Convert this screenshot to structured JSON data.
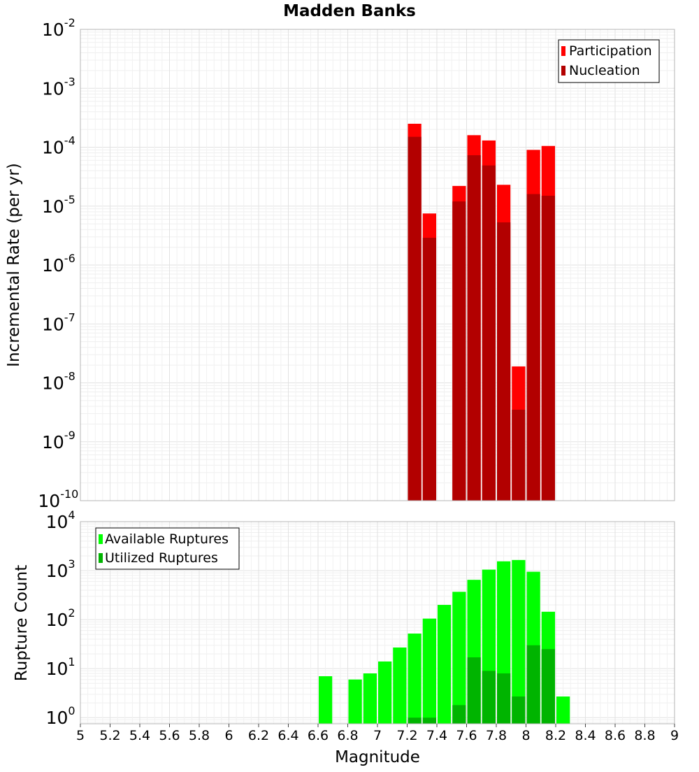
{
  "chart_data": [
    {
      "type": "bar",
      "title": "Madden Banks",
      "xlabel": "",
      "ylabel": "Incremental Rate (per yr)",
      "yscale": "log",
      "ylim": [
        1e-10,
        0.01
      ],
      "xlim": [
        5,
        9
      ],
      "bin_width": 0.1,
      "grid": true,
      "legend_position": "top-right",
      "y_tick_exponents": [
        "-10",
        "-9",
        "-8",
        "-7",
        "-6",
        "-5",
        "-4",
        "-3",
        "-2"
      ],
      "x": [
        7.25,
        7.35,
        7.55,
        7.65,
        7.75,
        7.85,
        7.95,
        8.05,
        8.15
      ],
      "series": [
        {
          "name": "Participation",
          "color": "#ff0000",
          "values": [
            0.00025,
            7.5e-06,
            2.2e-05,
            0.00016,
            0.00013,
            2.3e-05,
            1.9e-08,
            9e-05,
            0.000105
          ]
        },
        {
          "name": "Nucleation",
          "color": "#b20000",
          "values": [
            0.00015,
            2.9e-06,
            1.2e-05,
            7.3e-05,
            4.9e-05,
            5.3e-06,
            3.5e-09,
            1.6e-05,
            1.5e-05
          ]
        }
      ]
    },
    {
      "type": "bar",
      "title": "",
      "xlabel": "Magnitude",
      "ylabel": "Rupture Count",
      "yscale": "log",
      "ylim": [
        0.75,
        10000
      ],
      "xlim": [
        5,
        9
      ],
      "bin_width": 0.1,
      "grid": true,
      "legend_position": "top-left",
      "y_tick_exponents": [
        "0",
        "1",
        "2",
        "3",
        "4"
      ],
      "x_ticks": [
        "5",
        "5.2",
        "5.4",
        "5.6",
        "5.8",
        "6",
        "6.2",
        "6.4",
        "6.6",
        "6.8",
        "7",
        "7.2",
        "7.4",
        "7.6",
        "7.8",
        "8",
        "8.2",
        "8.4",
        "8.6",
        "8.8",
        "9"
      ],
      "series": [
        {
          "name": "Available Ruptures",
          "color": "#00ff00",
          "x": [
            6.65,
            6.85,
            6.95,
            7.05,
            7.15,
            7.25,
            7.35,
            7.45,
            7.55,
            7.65,
            7.75,
            7.85,
            7.95,
            8.05,
            8.15,
            8.25
          ],
          "values": [
            7,
            6,
            8,
            14,
            27,
            52,
            105,
            200,
            370,
            650,
            1050,
            1550,
            1650,
            950,
            145,
            2.7
          ]
        },
        {
          "name": "Utilized Ruptures",
          "color": "#00b400",
          "x": [
            7.25,
            7.35,
            7.55,
            7.65,
            7.75,
            7.85,
            7.95,
            8.05,
            8.15
          ],
          "values": [
            1,
            1,
            1.8,
            17,
            9,
            8,
            2.7,
            30,
            25
          ]
        }
      ]
    }
  ]
}
